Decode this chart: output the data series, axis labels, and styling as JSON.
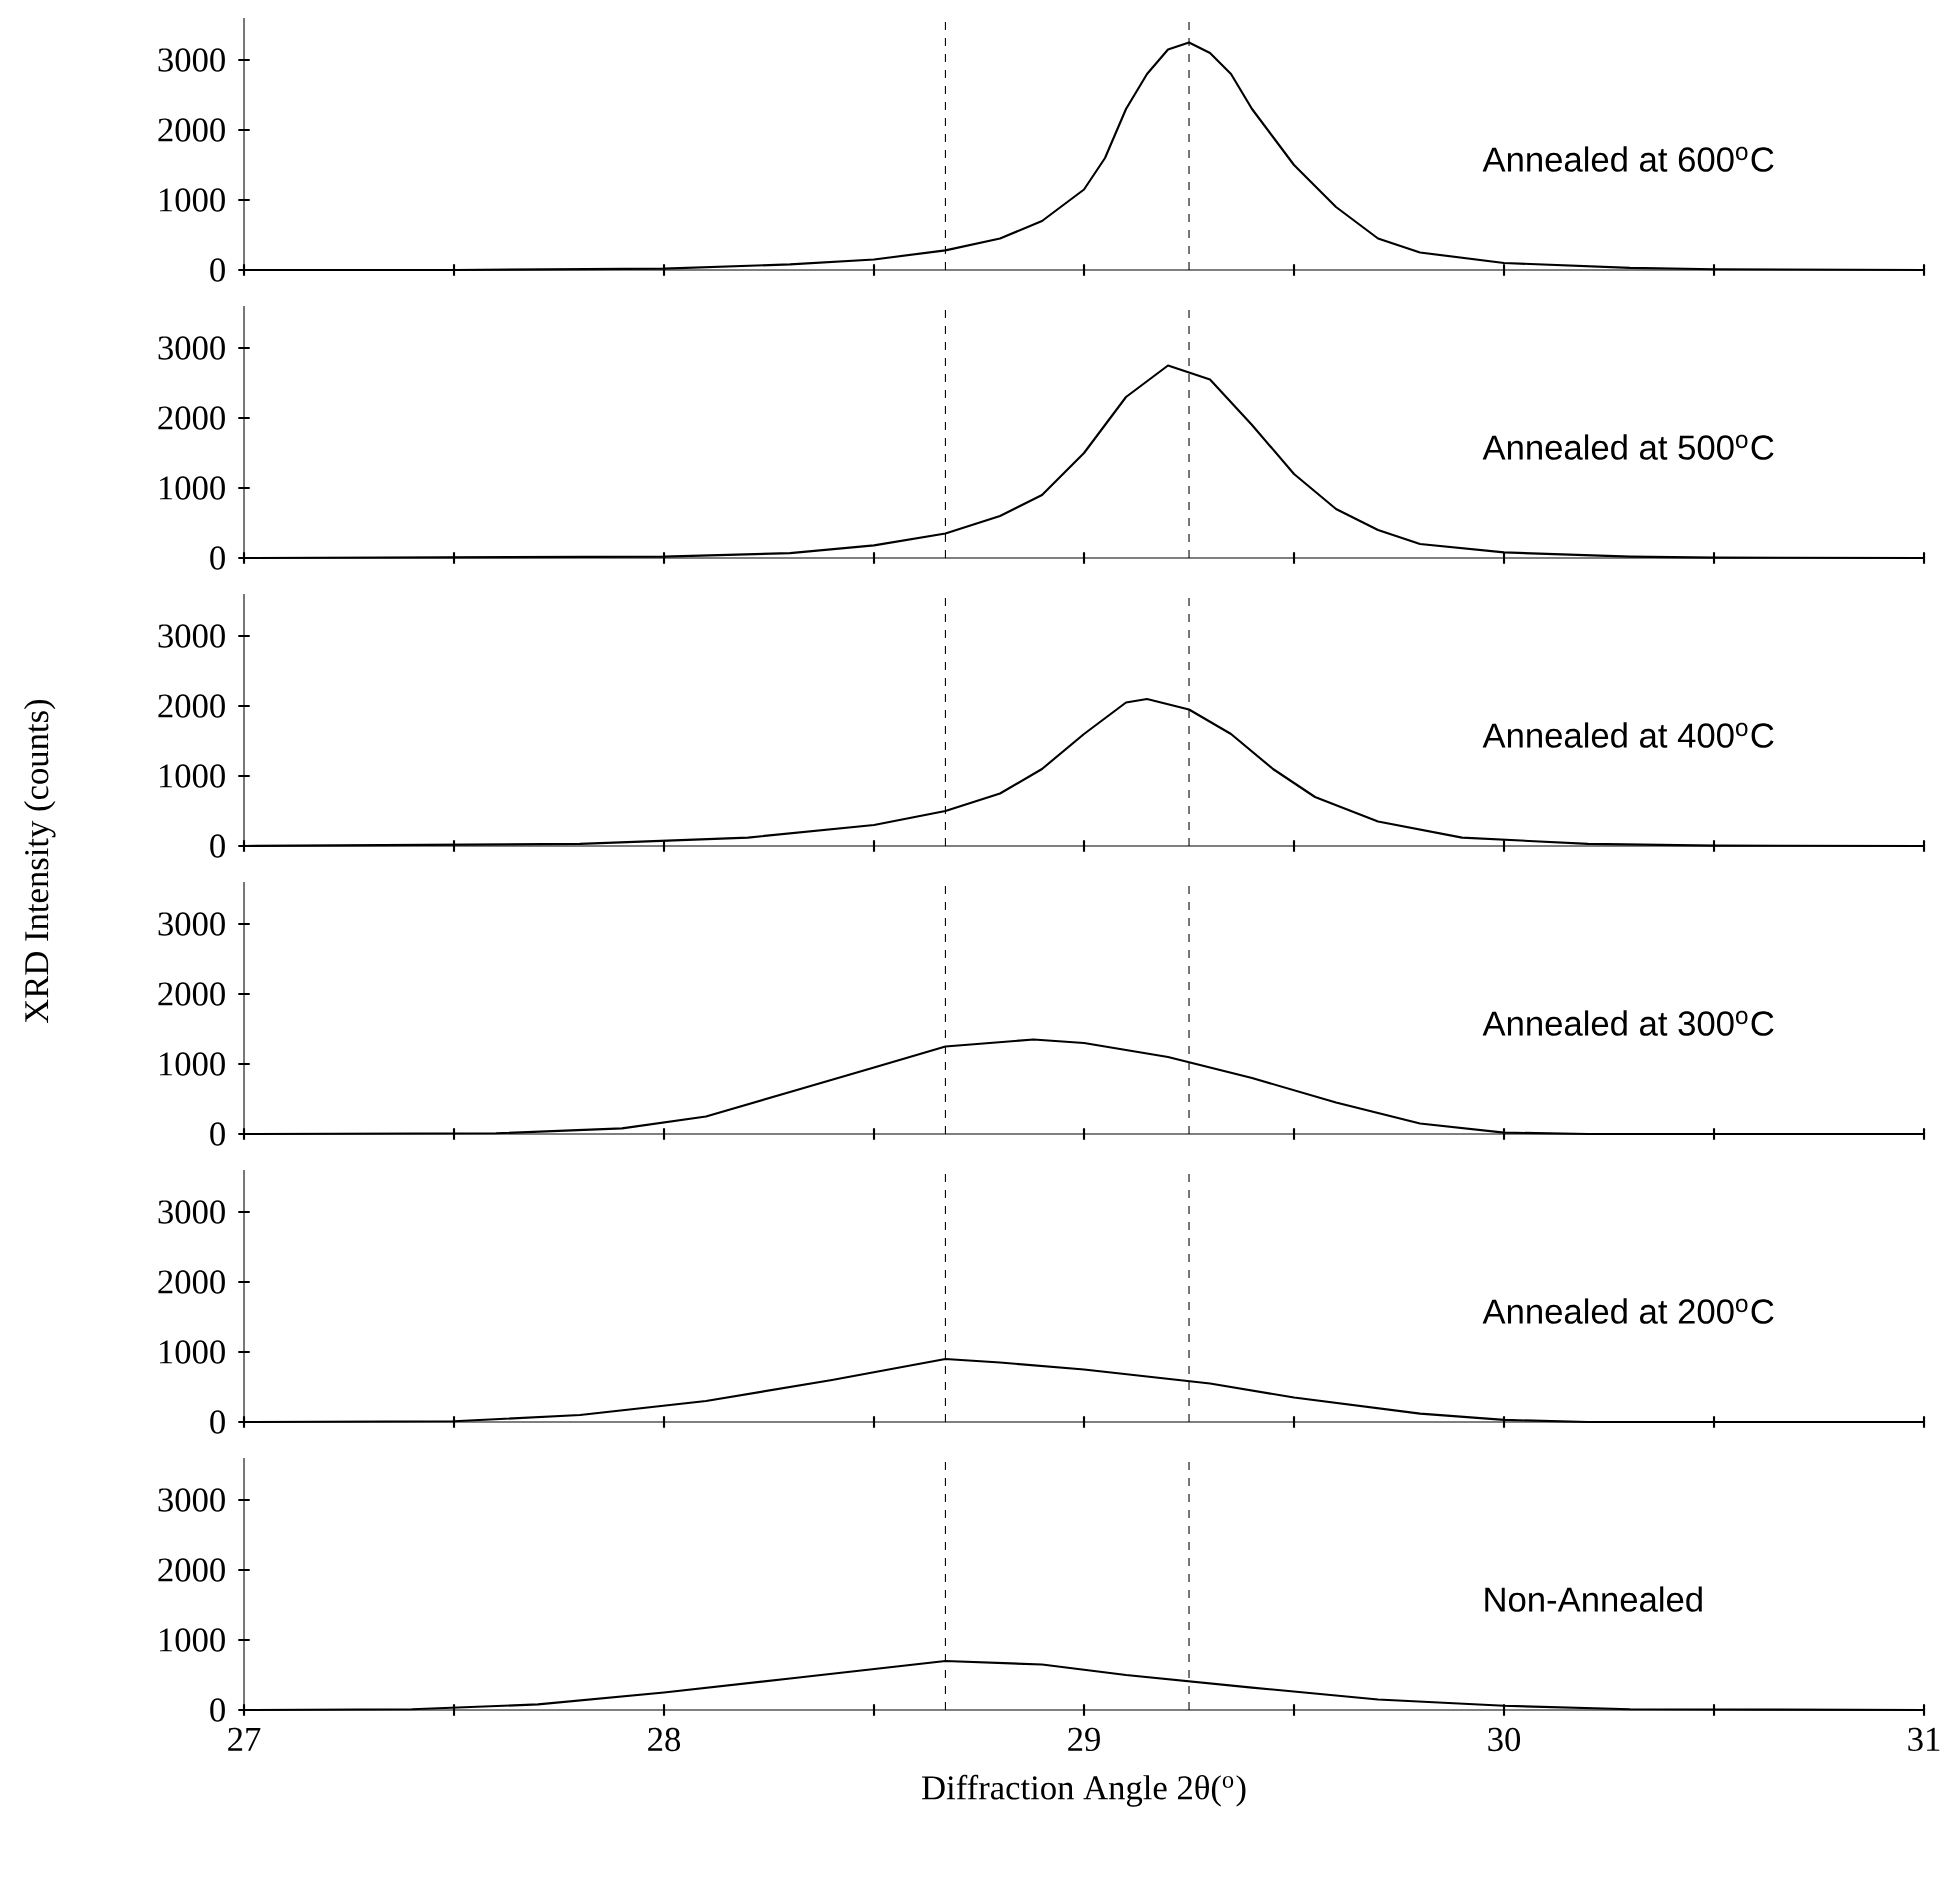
{
  "chart_data": [
    {
      "type": "line",
      "x": [
        27,
        27.5,
        28,
        28.3,
        28.5,
        28.67,
        28.8,
        28.9,
        29.0,
        29.05,
        29.1,
        29.15,
        29.2,
        29.25,
        29.3,
        29.35,
        29.4,
        29.45,
        29.5,
        29.6,
        29.7,
        29.8,
        30.0,
        30.3,
        30.5,
        31
      ],
      "values": [
        0,
        0,
        20,
        80,
        150,
        280,
        450,
        700,
        1150,
        1600,
        2300,
        2800,
        3150,
        3250,
        3100,
        2800,
        2300,
        1900,
        1500,
        900,
        450,
        250,
        100,
        30,
        10,
        0
      ],
      "color": "#000000",
      "xlim": [
        27,
        31
      ],
      "ylim": [
        0,
        3600
      ],
      "xticks": [
        27,
        {
          "value": 27.5,
          "label": null
        },
        28,
        {
          "value": 28.5,
          "label": null
        },
        29,
        {
          "value": 29.5,
          "label": null
        },
        30,
        {
          "value": 30.5,
          "label": null
        },
        31
      ],
      "yticks": [
        0,
        1000,
        2000,
        3000
      ],
      "tick_labels": "y",
      "annotations": [
        "Annealed at 600$^{o}$C"
      ],
      "ref_lines": [
        {
          "axis": "x",
          "value": 28.67,
          "line_style": "dashed"
        },
        {
          "axis": "x",
          "value": 29.25,
          "line_style": "dashed"
        }
      ]
    },
    {
      "type": "line",
      "x": [
        27,
        28,
        28.3,
        28.5,
        28.67,
        28.8,
        28.9,
        29.0,
        29.1,
        29.2,
        29.3,
        29.4,
        29.5,
        29.6,
        29.7,
        29.8,
        30,
        30.3,
        30.5,
        31
      ],
      "values": [
        0,
        20,
        70,
        180,
        350,
        600,
        900,
        1500,
        2300,
        2750,
        2550,
        1900,
        1200,
        700,
        400,
        200,
        80,
        20,
        5,
        0
      ],
      "color": "#000000",
      "xlim": [
        27,
        31
      ],
      "ylim": [
        0,
        3600
      ],
      "xticks": [
        27,
        {
          "value": 27.5,
          "label": null
        },
        28,
        {
          "value": 28.5,
          "label": null
        },
        29,
        {
          "value": 29.5,
          "label": null
        },
        30,
        {
          "value": 30.5,
          "label": null
        },
        31
      ],
      "yticks": [
        0,
        1000,
        2000,
        3000
      ],
      "tick_labels": "y",
      "annotations": [
        "Annealed at 500$^{o}$C"
      ],
      "ref_lines": [
        {
          "axis": "x",
          "value": 28.67,
          "line_style": "dashed"
        },
        {
          "axis": "x",
          "value": 29.25,
          "line_style": "dashed"
        }
      ]
    },
    {
      "type": "line",
      "x": [
        27,
        27.8,
        28.2,
        28.5,
        28.67,
        28.8,
        28.9,
        29.0,
        29.1,
        29.15,
        29.25,
        29.35,
        29.45,
        29.55,
        29.7,
        29.9,
        30.2,
        30.5,
        31
      ],
      "values": [
        0,
        30,
        120,
        300,
        500,
        750,
        1100,
        1600,
        2050,
        2100,
        1950,
        1600,
        1100,
        700,
        350,
        120,
        30,
        5,
        0
      ],
      "color": "#000000",
      "xlim": [
        27,
        31
      ],
      "ylim": [
        0,
        3600
      ],
      "xticks": [
        27,
        {
          "value": 27.5,
          "label": null
        },
        28,
        {
          "value": 28.5,
          "label": null
        },
        29,
        {
          "value": 29.5,
          "label": null
        },
        30,
        {
          "value": 30.5,
          "label": null
        },
        31
      ],
      "yticks": [
        0,
        1000,
        2000,
        3000
      ],
      "tick_labels": "y",
      "ylabel": "XRD Intensity (counts)",
      "annotations": [
        "Annealed at 400$^{o}$C"
      ],
      "ref_lines": [
        {
          "axis": "x",
          "value": 28.67,
          "line_style": "dashed"
        },
        {
          "axis": "x",
          "value": 29.25,
          "line_style": "dashed"
        }
      ]
    },
    {
      "type": "line",
      "x": [
        27,
        27.6,
        27.9,
        28.1,
        28.3,
        28.5,
        28.67,
        28.88,
        29.0,
        29.2,
        29.4,
        29.6,
        29.8,
        30.0,
        30.2,
        31
      ],
      "values": [
        0,
        10,
        80,
        250,
        600,
        950,
        1250,
        1350,
        1300,
        1100,
        800,
        450,
        150,
        20,
        0,
        0
      ],
      "color": "#000000",
      "xlim": [
        27,
        31
      ],
      "ylim": [
        0,
        3600
      ],
      "xticks": [
        27,
        {
          "value": 27.5,
          "label": null
        },
        28,
        {
          "value": 28.5,
          "label": null
        },
        29,
        {
          "value": 29.5,
          "label": null
        },
        30,
        {
          "value": 30.5,
          "label": null
        },
        31
      ],
      "yticks": [
        0,
        1000,
        2000,
        3000
      ],
      "tick_labels": "y",
      "annotations": [
        "Annealed at 300$^{o}$C"
      ],
      "ref_lines": [
        {
          "axis": "x",
          "value": 28.67,
          "line_style": "dashed"
        },
        {
          "axis": "x",
          "value": 29.25,
          "line_style": "dashed"
        }
      ]
    },
    {
      "type": "line",
      "x": [
        27,
        27.5,
        27.8,
        28.1,
        28.4,
        28.67,
        28.8,
        29.0,
        29.3,
        29.5,
        29.8,
        30.0,
        30.2,
        31
      ],
      "values": [
        0,
        10,
        100,
        300,
        600,
        900,
        850,
        750,
        550,
        350,
        120,
        30,
        0,
        0
      ],
      "color": "#000000",
      "xlim": [
        27,
        31
      ],
      "ylim": [
        0,
        3600
      ],
      "xticks": [
        27,
        {
          "value": 27.5,
          "label": null
        },
        28,
        {
          "value": 28.5,
          "label": null
        },
        29,
        {
          "value": 29.5,
          "label": null
        },
        30,
        {
          "value": 30.5,
          "label": null
        },
        31
      ],
      "yticks": [
        0,
        1000,
        2000,
        3000
      ],
      "tick_labels": "y",
      "annotations": [
        "Annealed at 200$^{o}$C"
      ],
      "ref_lines": [
        {
          "axis": "x",
          "value": 28.67,
          "line_style": "dashed"
        },
        {
          "axis": "x",
          "value": 29.25,
          "line_style": "dashed"
        }
      ]
    },
    {
      "type": "line",
      "x": [
        27,
        27.4,
        27.7,
        28.0,
        28.3,
        28.67,
        28.9,
        29.1,
        29.4,
        29.7,
        30.0,
        30.3,
        31
      ],
      "values": [
        0,
        10,
        80,
        250,
        450,
        700,
        650,
        500,
        320,
        150,
        60,
        10,
        0
      ],
      "color": "#000000",
      "xlim": [
        27,
        31
      ],
      "ylim": [
        0,
        3600
      ],
      "xticks": [
        27,
        {
          "value": 27.5,
          "label": null
        },
        28,
        {
          "value": 28.5,
          "label": null
        },
        29,
        {
          "value": 29.5,
          "label": null
        },
        30,
        {
          "value": 30.5,
          "label": null
        },
        31
      ],
      "yticks": [
        0,
        1000,
        2000,
        3000
      ],
      "xlabel": "Diffraction Angle 2θ($^{o}$)",
      "annotations": [
        "Non-Annealed"
      ],
      "ref_lines": [
        {
          "axis": "x",
          "value": 28.67,
          "line_style": "dashed"
        },
        {
          "axis": "x",
          "value": 29.25,
          "line_style": "dashed"
        }
      ]
    }
  ]
}
